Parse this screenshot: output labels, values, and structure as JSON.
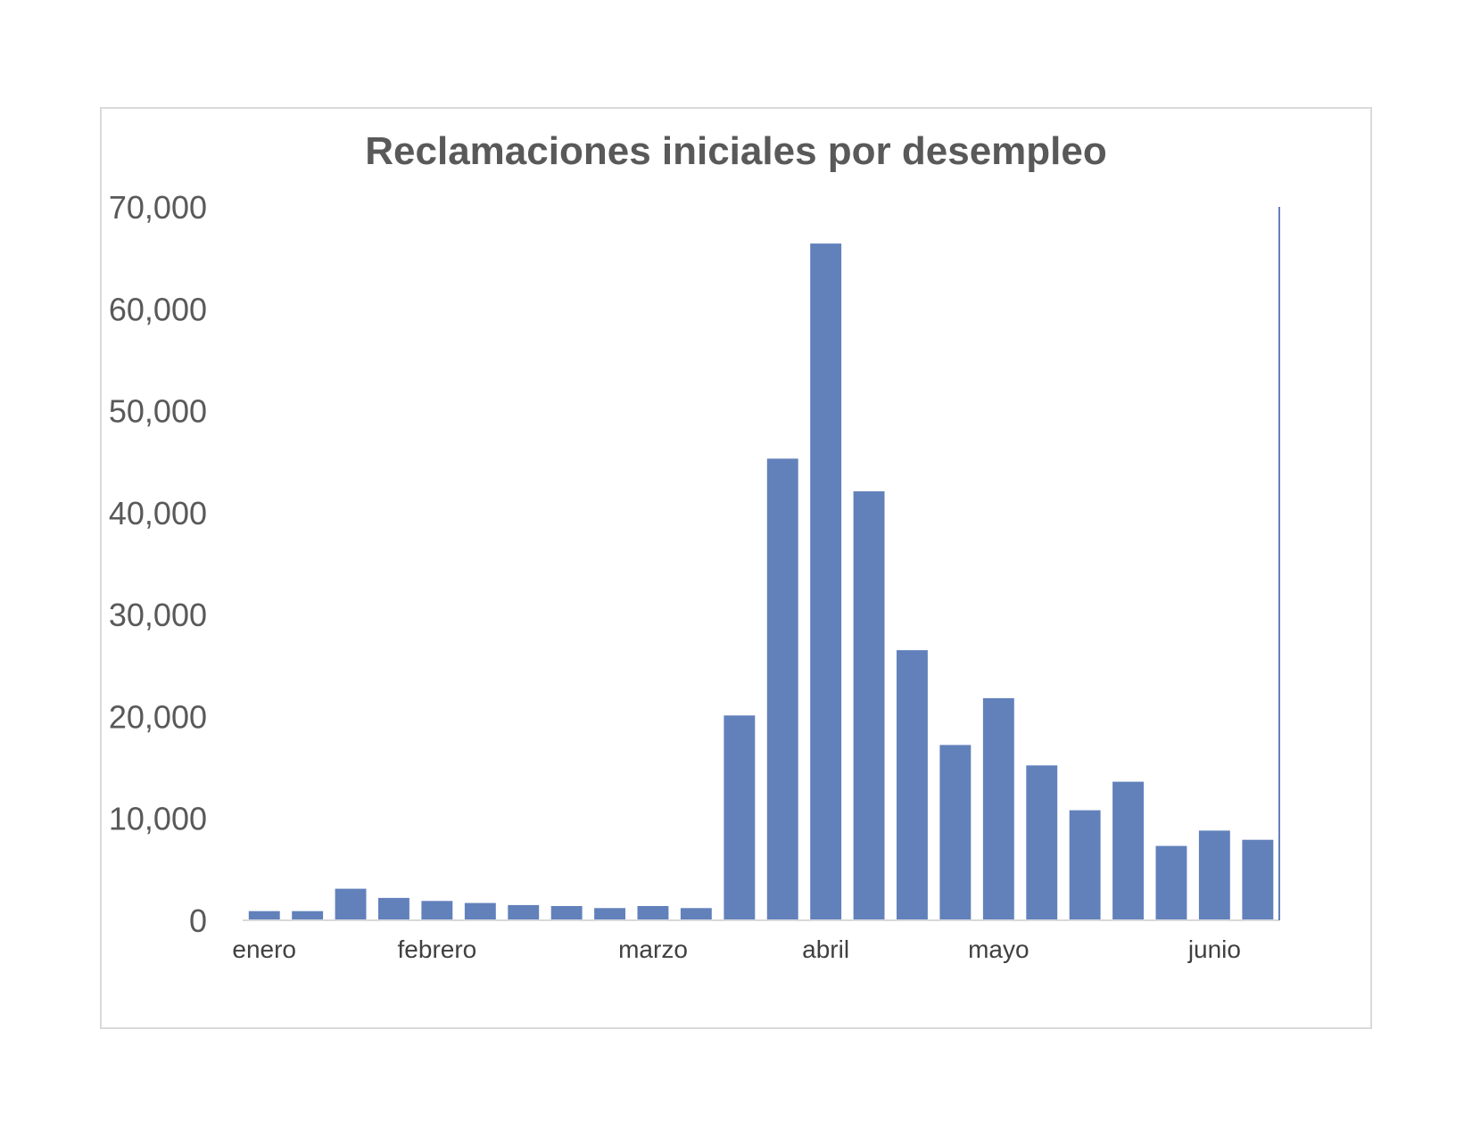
{
  "chart_data": {
    "type": "bar",
    "title": "Reclamaciones iniciales por desempleo",
    "xlabel": "",
    "ylabel": "",
    "ylim": [
      0,
      70000
    ],
    "yticks": [
      0,
      10000,
      20000,
      30000,
      40000,
      50000,
      60000,
      70000
    ],
    "ytick_labels": [
      "0",
      "10,000",
      "20,000",
      "30,000",
      "40,000",
      "50,000",
      "60,000",
      "70,000"
    ],
    "month_labels": [
      {
        "label": "enero",
        "index": 0.5
      },
      {
        "label": "febrero",
        "index": 4.5
      },
      {
        "label": "marzo",
        "index": 9.5
      },
      {
        "label": "abril",
        "index": 13.5
      },
      {
        "label": "mayo",
        "index": 17.5
      },
      {
        "label": "junio",
        "index": 22.5
      }
    ],
    "values": [
      900,
      900,
      3100,
      2200,
      1900,
      1700,
      1500,
      1400,
      1200,
      1400,
      1200,
      20100,
      45300,
      66400,
      42100,
      26500,
      17200,
      21800,
      15200,
      10800,
      13600,
      7300,
      8800,
      7900
    ],
    "grid": false,
    "legend": "none",
    "colors": {
      "bar": "#6281bb",
      "axis": "#d9d9d9",
      "right_line": "#6281bb"
    }
  }
}
